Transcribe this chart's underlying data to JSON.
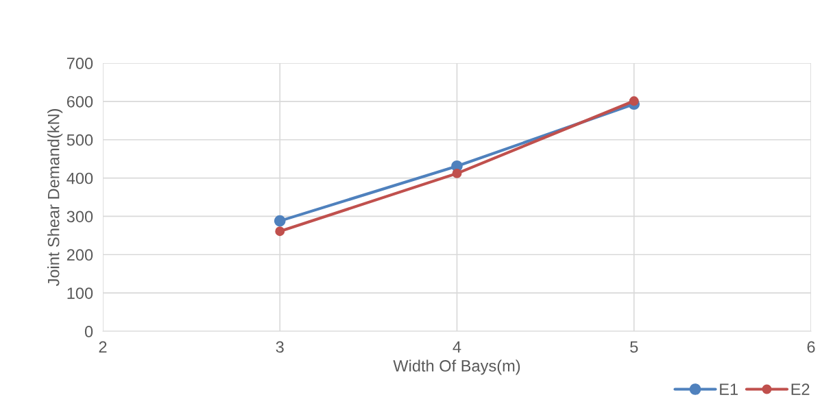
{
  "chart_data": {
    "type": "line",
    "xlabel": "Width Of Bays(m)",
    "ylabel": "Joint Shear Demand(kN)",
    "x": [
      3,
      4,
      5
    ],
    "series": [
      {
        "name": "E1",
        "color": "#4f81bd",
        "values": [
          288,
          431,
          593
        ]
      },
      {
        "name": "E2",
        "color": "#c0504d",
        "values": [
          261,
          412,
          601
        ]
      }
    ],
    "xlim": [
      2,
      6
    ],
    "xticks": [
      2,
      3,
      4,
      5,
      6
    ],
    "ylim": [
      0,
      700
    ],
    "yticks": [
      0,
      100,
      200,
      300,
      400,
      500,
      600,
      700
    ],
    "grid": true,
    "legend": "bottom right",
    "marker": "circle",
    "line_style": "solid"
  }
}
